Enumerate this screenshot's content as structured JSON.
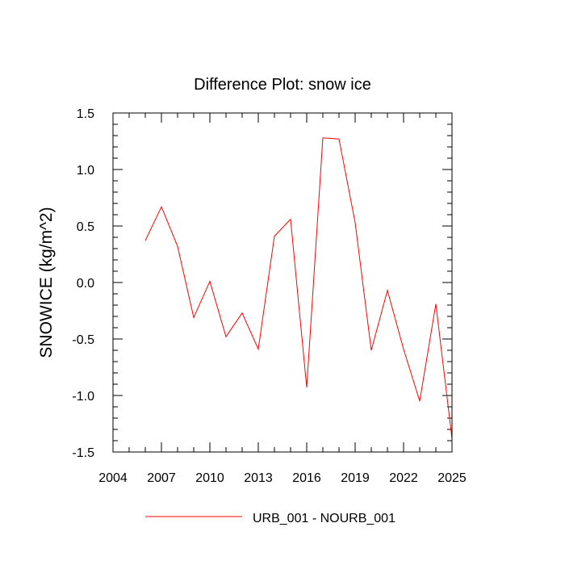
{
  "chart_data": {
    "type": "line",
    "title": "Difference Plot: snow ice",
    "xlabel": "",
    "ylabel": "SNOWICE  (kg/m^2)",
    "xlim": [
      2004,
      2025
    ],
    "ylim": [
      -1.5,
      1.5
    ],
    "x_ticks": [
      2004,
      2007,
      2010,
      2013,
      2016,
      2019,
      2022,
      2025
    ],
    "x_tick_labels": [
      "2004",
      "2007",
      "2010",
      "2013",
      "2016",
      "2019",
      "2022",
      "2025"
    ],
    "y_ticks": [
      -1.5,
      -1.0,
      -0.5,
      0.0,
      0.5,
      1.0,
      1.5
    ],
    "y_tick_labels": [
      "-1.5",
      "-1.0",
      "-0.5",
      "0.0",
      "0.5",
      "1.0",
      "1.5"
    ],
    "grid": false,
    "legend_position": "bottom",
    "series": [
      {
        "name": "URB_001 - NOURB_001",
        "color": "#ff0000",
        "x": [
          2006,
          2007,
          2008,
          2009,
          2010,
          2011,
          2012,
          2013,
          2014,
          2015,
          2016,
          2017,
          2018,
          2019,
          2020,
          2021,
          2022,
          2023,
          2024,
          2025
        ],
        "y": [
          0.37,
          0.67,
          0.32,
          -0.31,
          0.01,
          -0.48,
          -0.27,
          -0.59,
          0.41,
          0.56,
          -0.93,
          1.28,
          1.27,
          0.53,
          -0.6,
          -0.07,
          -0.59,
          -1.05,
          -0.19,
          -1.38
        ]
      }
    ]
  }
}
